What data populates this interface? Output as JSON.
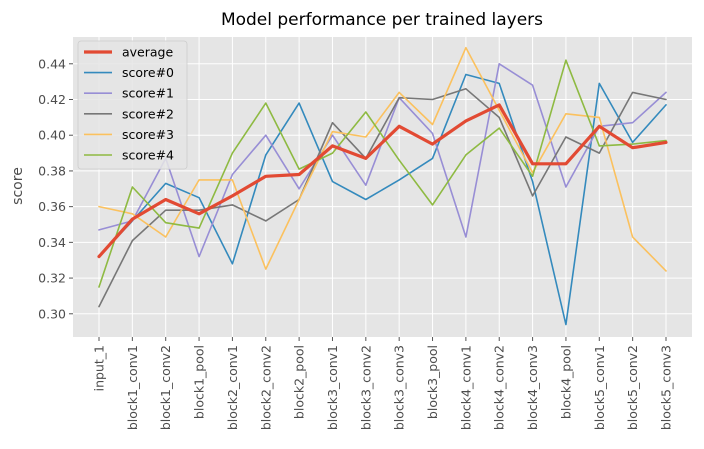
{
  "chart_data": {
    "type": "line",
    "title": "Model performance per trained layers",
    "xlabel": "",
    "ylabel": "score",
    "ylim": [
      0.287,
      0.455
    ],
    "yticks": [
      0.3,
      0.32,
      0.34,
      0.36,
      0.38,
      0.4,
      0.42,
      0.44
    ],
    "ytick_labels": [
      "0.30",
      "0.32",
      "0.34",
      "0.36",
      "0.38",
      "0.40",
      "0.42",
      "0.44"
    ],
    "grid": true,
    "legend_position": "upper-left",
    "categories": [
      "input_1",
      "block1_conv1",
      "block1_conv2",
      "block1_pool",
      "block2_conv1",
      "block2_conv2",
      "block2_pool",
      "block3_conv1",
      "block3_conv2",
      "block3_conv3",
      "block3_pool",
      "block4_conv1",
      "block4_conv2",
      "block4_conv3",
      "block4_pool",
      "block5_conv1",
      "block5_conv2",
      "block5_conv3"
    ],
    "series": [
      {
        "name": "average",
        "color": "#e24a33",
        "width": 3.2,
        "values": [
          0.332,
          0.353,
          0.364,
          0.356,
          0.366,
          0.377,
          0.378,
          0.394,
          0.387,
          0.405,
          0.395,
          0.408,
          0.417,
          0.384,
          0.384,
          0.405,
          0.393,
          0.396
        ]
      },
      {
        "name": "score#0",
        "color": "#348abd",
        "width": 1.6,
        "values": [
          0.332,
          0.352,
          0.373,
          0.365,
          0.328,
          0.389,
          0.418,
          0.374,
          0.364,
          0.375,
          0.387,
          0.434,
          0.429,
          0.374,
          0.294,
          0.429,
          0.396,
          0.417
        ]
      },
      {
        "name": "score#1",
        "color": "#988ed5",
        "width": 1.6,
        "values": [
          0.347,
          0.352,
          0.387,
          0.332,
          0.378,
          0.4,
          0.37,
          0.4,
          0.372,
          0.421,
          0.401,
          0.343,
          0.44,
          0.428,
          0.371,
          0.405,
          0.407,
          0.424
        ]
      },
      {
        "name": "score#2",
        "color": "#777777",
        "width": 1.6,
        "values": [
          0.304,
          0.341,
          0.358,
          0.358,
          0.361,
          0.352,
          0.364,
          0.407,
          0.387,
          0.421,
          0.42,
          0.426,
          0.41,
          0.366,
          0.399,
          0.39,
          0.424,
          0.42
        ]
      },
      {
        "name": "score#3",
        "color": "#fbc15e",
        "width": 1.6,
        "values": [
          0.36,
          0.356,
          0.343,
          0.375,
          0.375,
          0.325,
          0.364,
          0.402,
          0.399,
          0.424,
          0.406,
          0.449,
          0.414,
          0.379,
          0.412,
          0.41,
          0.343,
          0.324
        ]
      },
      {
        "name": "score#4",
        "color": "#8eba42",
        "width": 1.6,
        "values": [
          0.315,
          0.371,
          0.351,
          0.348,
          0.39,
          0.418,
          0.381,
          0.39,
          0.413,
          0.386,
          0.361,
          0.389,
          0.404,
          0.377,
          0.442,
          0.394,
          0.395,
          0.397
        ]
      }
    ]
  }
}
